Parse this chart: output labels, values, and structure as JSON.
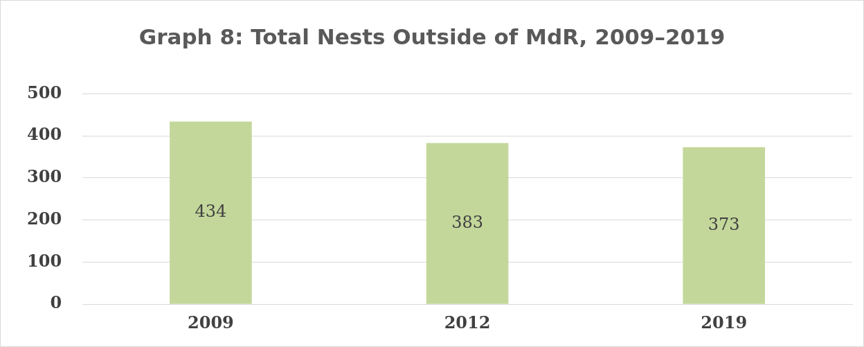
{
  "chart_data": {
    "type": "bar",
    "title": "Graph 8: Total Nests Outside of MdR, 2009–2019",
    "categories": [
      "2009",
      "2012",
      "2019"
    ],
    "values": [
      434,
      383,
      373
    ],
    "color": "#c4d79b",
    "ylim": [
      0,
      500
    ],
    "yticks": [
      0,
      100,
      200,
      300,
      400,
      500
    ],
    "grid": "y",
    "data_labels": true
  }
}
